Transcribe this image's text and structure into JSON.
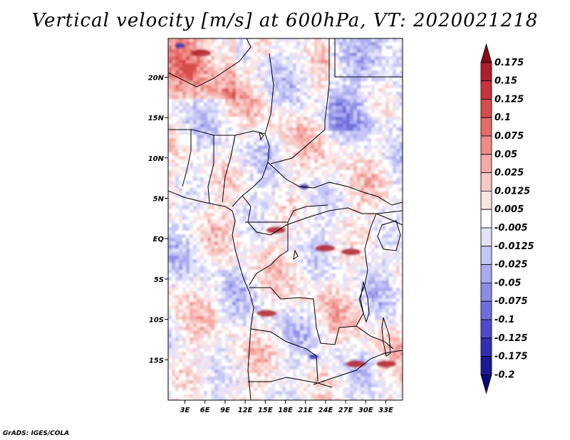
{
  "title": "Vertical velocity [m/s] at 600hPa, VT: 2020021218",
  "footer": "GrADS: IGES/COLA",
  "lat_labels": [
    "20N",
    "15N",
    "10N",
    "5N",
    "EQ",
    "5S",
    "10S",
    "15S"
  ],
  "lat_values": [
    20,
    15,
    10,
    5,
    0,
    -5,
    -10,
    -15
  ],
  "lon_labels": [
    "3E",
    "6E",
    "9E",
    "12E",
    "15E",
    "18E",
    "21E",
    "24E",
    "27E",
    "30E",
    "33E"
  ],
  "lon_values": [
    3,
    6,
    9,
    12,
    15,
    18,
    21,
    24,
    27,
    30,
    33
  ],
  "map_extent": {
    "lon_min": 0.5,
    "lon_max": 35.5,
    "lat_min": -20,
    "lat_max": 24.8
  },
  "colorbar": {
    "labels": [
      "0.175",
      "0.15",
      "0.125",
      "0.1",
      "0.075",
      "0.05",
      "0.025",
      "0.0125",
      "0.005",
      "-0.005",
      "-0.0125",
      "-0.025",
      "-0.05",
      "-0.075",
      "-0.1",
      "-0.125",
      "-0.175",
      "-0.2"
    ],
    "colors": [
      "#8b0a14",
      "#b01e2a",
      "#c8343c",
      "#d84c4c",
      "#e46c66",
      "#ee8c86",
      "#f5aaa6",
      "#f8c8c4",
      "#fbe4e2",
      "#ffffff",
      "#e2e2fa",
      "#c6c6f6",
      "#aaaaf0",
      "#8c8ce6",
      "#6e6edc",
      "#4c4cc8",
      "#3030b0",
      "#1a1a96",
      "#0a0a78"
    ]
  }
}
